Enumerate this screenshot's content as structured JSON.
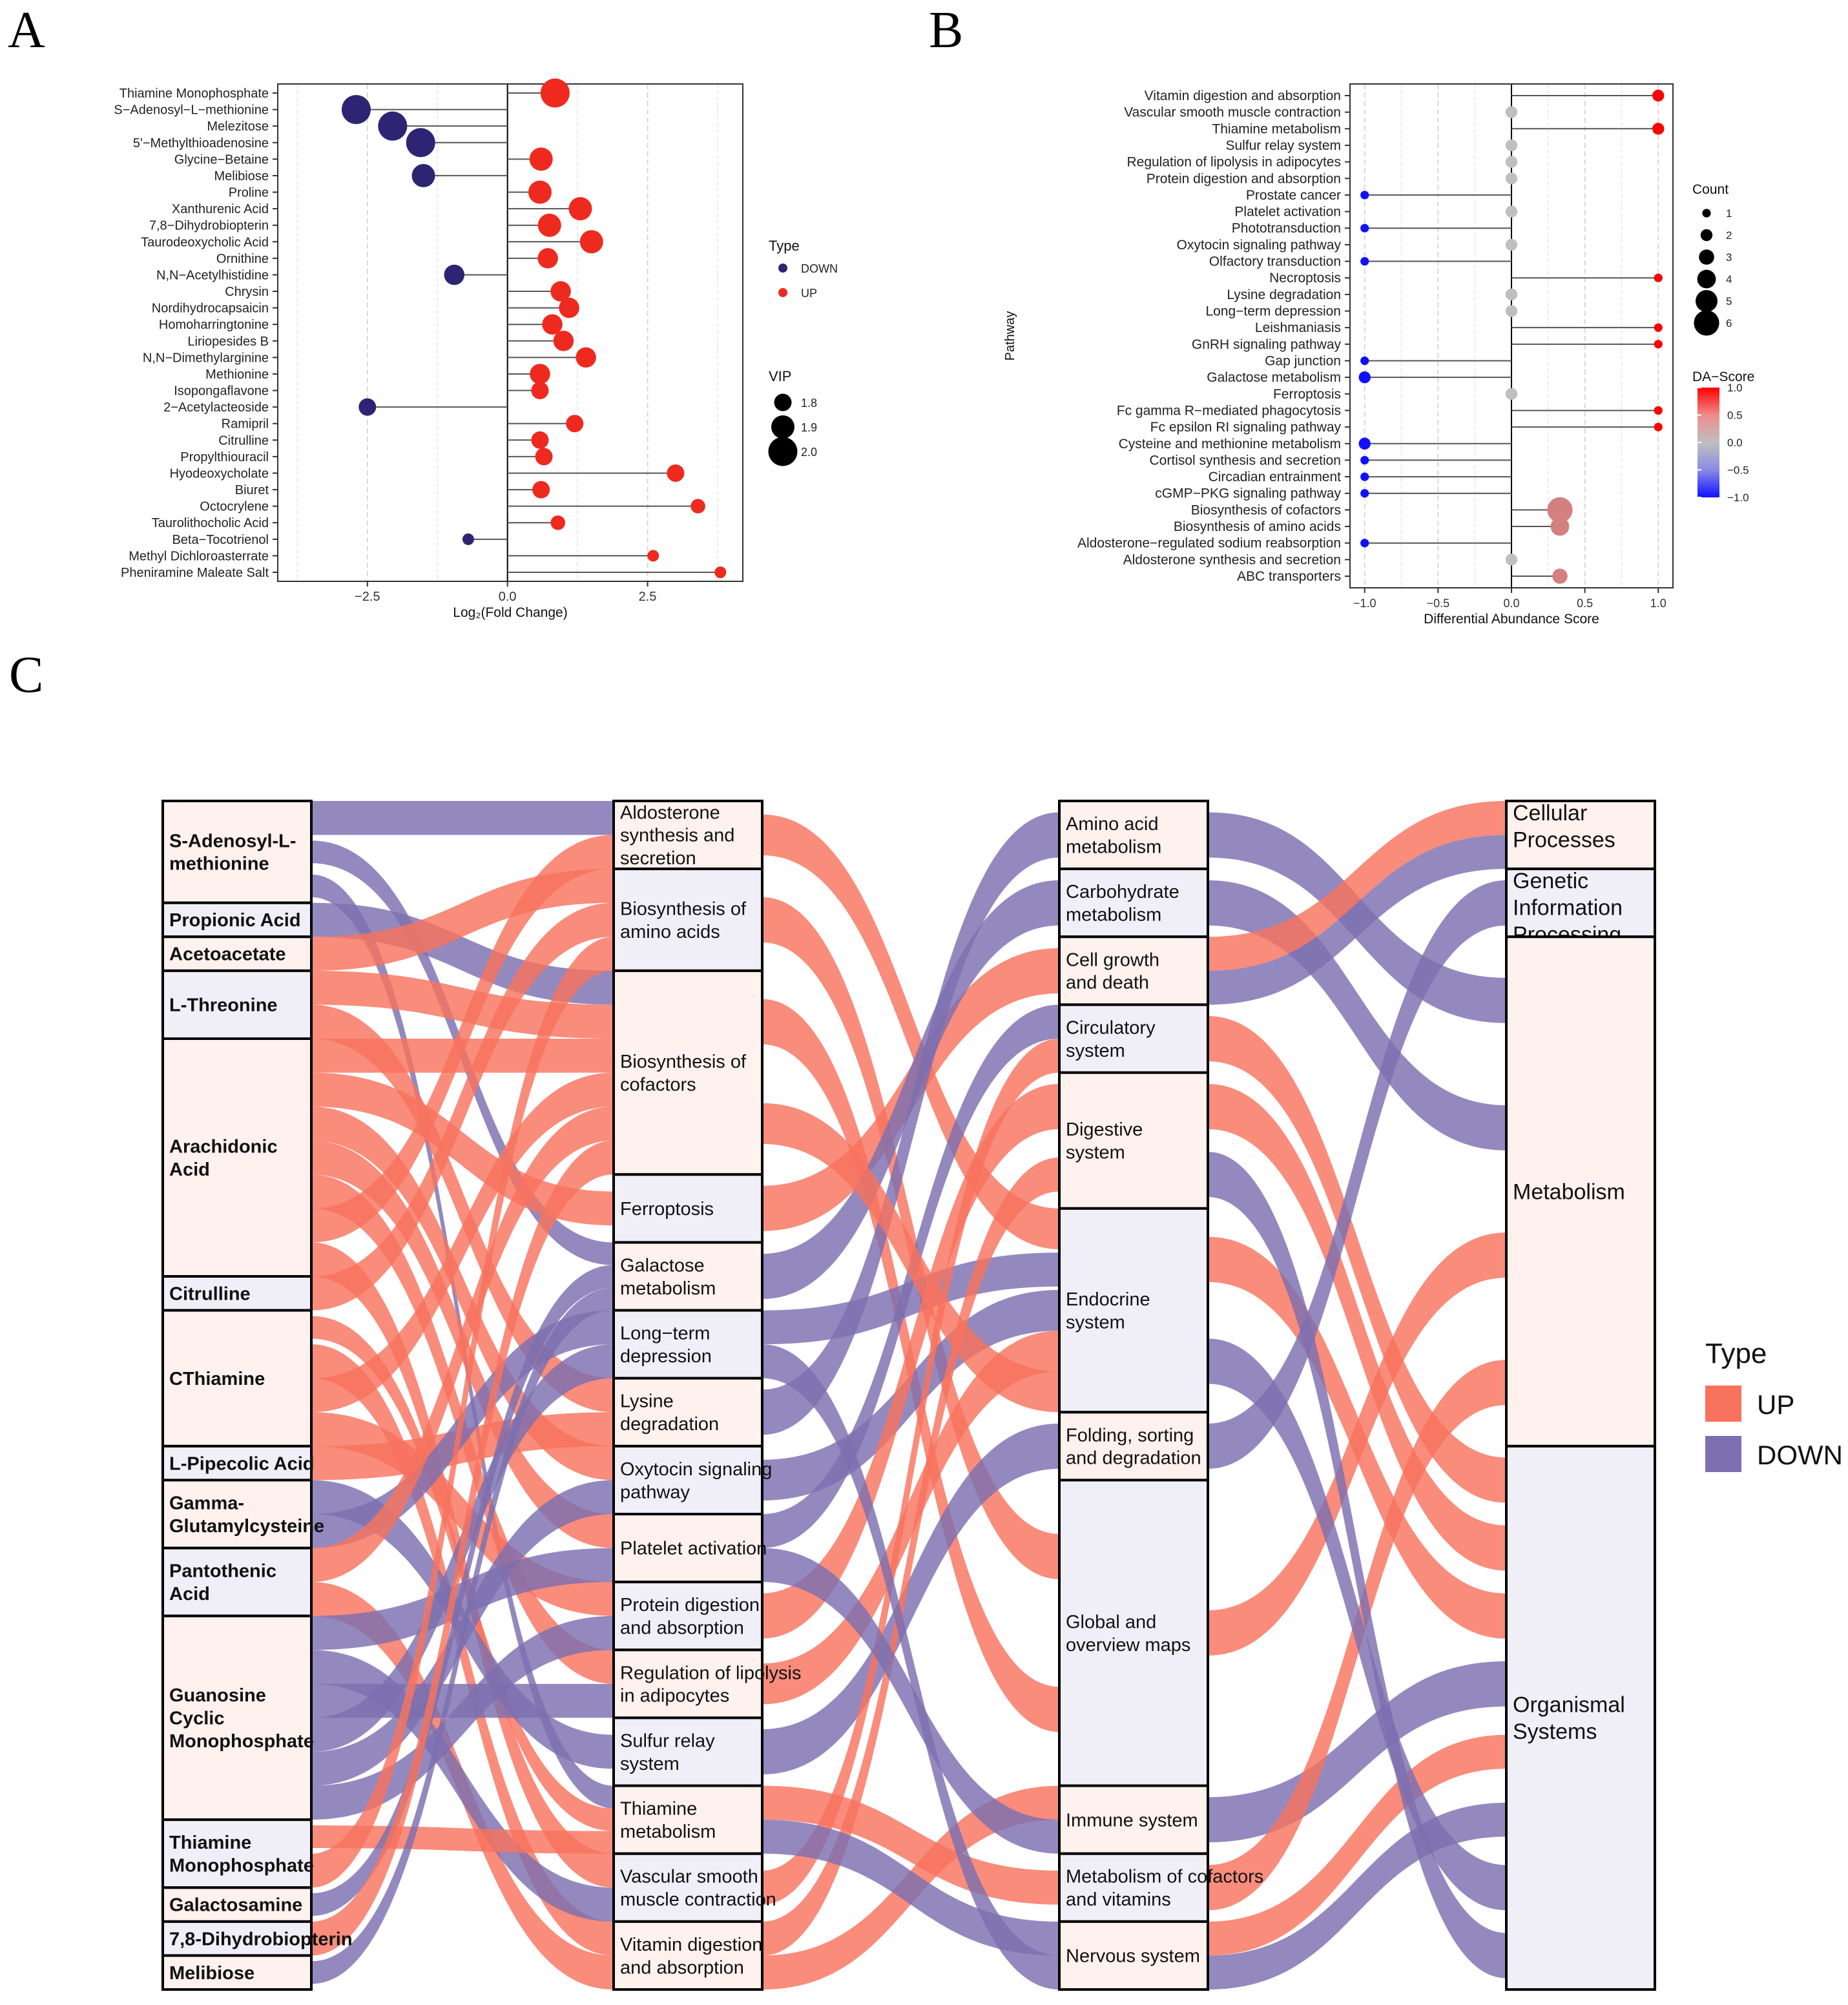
{
  "panels": {
    "a": "A",
    "b": "B",
    "c": "C"
  },
  "colors": {
    "up": "#ee2a1f",
    "down": "#2d2573",
    "da_pos": "#ff0000",
    "da_zero": "#bfbfbf",
    "da_neg": "#1010ff",
    "flow_up": "#f8735e",
    "flow_down": "#7d6fb0",
    "node_up": "#fff1ed",
    "node_down": "#f0eff8"
  },
  "chart_data": [
    {
      "id": "A",
      "type": "scatter",
      "subtype": "lollipop",
      "xlabel": "Log₂(Fold Change)",
      "ylabel": "",
      "xlim": [
        -4.1,
        4.2
      ],
      "xticks": [
        -2.5,
        0.0,
        2.5
      ],
      "xtick_labels": [
        "−2.5",
        "0.0",
        "2.5"
      ],
      "categories": [
        "Thiamine Monophosphate",
        "S−Adenosyl−L−methionine",
        "Melezitose",
        "5'−Methylthioadenosine",
        "Glycine−Betaine",
        "Melibiose",
        "Proline",
        "Xanthurenic Acid",
        "7,8−Dihydrobiopterin",
        "Taurodeoxycholic Acid",
        "Ornithine",
        "N,N−Acetylhistidine",
        "Chrysin",
        "Nordihydrocapsaicin",
        "Homoharringtonine",
        "Liriopesides B",
        "N,N−Dimethylarginine",
        "Methionine",
        "Isopongaflavone",
        "2−Acetylacteoside",
        "Ramipril",
        "Citrulline",
        "Propylthiouracil",
        "Hyodeoxycholate",
        "Biuret",
        "Octocrylene",
        "Taurolithocholic Acid",
        "Beta−Tocotrienol",
        "Methyl Dichloroasterrate",
        "Pheniramine Maleate Salt"
      ],
      "values": [
        0.85,
        -2.7,
        -2.05,
        -1.55,
        0.6,
        -1.5,
        0.58,
        1.3,
        0.75,
        1.5,
        0.72,
        -0.95,
        0.95,
        1.1,
        0.8,
        1.0,
        1.4,
        0.58,
        0.58,
        -2.5,
        1.2,
        0.58,
        0.65,
        3.0,
        0.6,
        3.4,
        0.9,
        -0.7,
        2.6,
        3.8
      ],
      "vip": [
        2.0,
        2.0,
        2.0,
        2.0,
        1.9,
        1.9,
        1.9,
        1.9,
        1.9,
        1.9,
        1.85,
        1.85,
        1.85,
        1.85,
        1.85,
        1.85,
        1.85,
        1.85,
        1.8,
        1.8,
        1.8,
        1.8,
        1.8,
        1.8,
        1.8,
        1.75,
        1.75,
        1.7,
        1.7,
        1.7
      ],
      "type_field": [
        "UP",
        "DOWN",
        "DOWN",
        "DOWN",
        "UP",
        "DOWN",
        "UP",
        "UP",
        "UP",
        "UP",
        "UP",
        "DOWN",
        "UP",
        "UP",
        "UP",
        "UP",
        "UP",
        "UP",
        "UP",
        "DOWN",
        "UP",
        "UP",
        "UP",
        "UP",
        "UP",
        "UP",
        "UP",
        "DOWN",
        "UP",
        "UP"
      ],
      "legend": {
        "type_title": "Type",
        "type_entries": [
          "DOWN",
          "UP"
        ],
        "vip_title": "VIP",
        "vip_entries": [
          "1.8",
          "1.9",
          "2.0"
        ],
        "vip_values": [
          1.8,
          1.9,
          2.0
        ]
      }
    },
    {
      "id": "B",
      "type": "scatter",
      "subtype": "lollipop",
      "xlabel": "Differential Abundance Score",
      "ylabel": "Pathway",
      "xlim": [
        -1.1,
        1.1
      ],
      "xticks": [
        -1.0,
        -0.5,
        0.0,
        0.5,
        1.0
      ],
      "xtick_labels": [
        "−1.0",
        "−0.5",
        "0.0",
        "0.5",
        "1.0"
      ],
      "categories": [
        "Vitamin digestion and absorption",
        "Vascular smooth muscle contraction",
        "Thiamine metabolism",
        "Sulfur relay system",
        "Regulation of lipolysis in adipocytes",
        "Protein digestion and absorption",
        "Prostate cancer",
        "Platelet activation",
        "Phototransduction",
        "Oxytocin signaling pathway",
        "Olfactory transduction",
        "Necroptosis",
        "Lysine degradation",
        "Long−term depression",
        "Leishmaniasis",
        "GnRH signaling pathway",
        "Gap junction",
        "Galactose metabolism",
        "Ferroptosis",
        "Fc gamma R−mediated phagocytosis",
        "Fc epsilon RI signaling pathway",
        "Cysteine and methionine metabolism",
        "Cortisol synthesis and secretion",
        "Circadian entrainment",
        "cGMP−PKG signaling pathway",
        "Biosynthesis of cofactors",
        "Biosynthesis of amino acids",
        "Aldosterone−regulated sodium reabsorption",
        "Aldosterone synthesis and secretion",
        "ABC transporters"
      ],
      "values": [
        1.0,
        0.0,
        1.0,
        0.0,
        0.0,
        0.0,
        -1.0,
        0.0,
        -1.0,
        0.0,
        -1.0,
        1.0,
        0.0,
        0.0,
        1.0,
        1.0,
        -1.0,
        -1.0,
        0.0,
        1.0,
        1.0,
        -1.0,
        -1.0,
        -1.0,
        -1.0,
        0.33,
        0.33,
        -1.0,
        0.0,
        0.33
      ],
      "count": [
        2,
        2,
        2,
        2,
        2,
        2,
        1,
        2,
        1,
        2,
        1,
        1,
        2,
        2,
        1,
        1,
        1,
        2,
        2,
        1,
        1,
        2,
        1,
        1,
        1,
        6,
        4,
        1,
        2,
        3
      ],
      "legend": {
        "count_title": "Count",
        "count_entries": [
          "1",
          "2",
          "3",
          "4",
          "5",
          "6"
        ],
        "count_values": [
          1,
          2,
          3,
          4,
          5,
          6
        ],
        "da_title": "DA−Score",
        "da_ticks": [
          "1.0",
          "0.5",
          "0.0",
          "−0.5",
          "−1.0"
        ],
        "da_tick_values": [
          1.0,
          0.5,
          0.0,
          -0.5,
          -1.0
        ]
      }
    },
    {
      "id": "C",
      "type": "sankey",
      "stage1": [
        "S-Adenosyl-L-\nmethionine",
        "Propionic Acid",
        "Acetoacetate",
        "L-Threonine",
        "Arachidonic\nAcid",
        "Citrulline",
        "CThiamine",
        "L-Pipecolic Acid",
        "Gamma-\nGlutamylcysteine",
        "Pantothenic\nAcid",
        "Guanosine\nCyclic\nMonophosphate",
        "Thiamine\nMonophosphate",
        "Galactosamine",
        "7,8-Dihydrobiopterin",
        "Melibiose"
      ],
      "stage1_weight": [
        3,
        1,
        1,
        2,
        7,
        1,
        4,
        1,
        2,
        2,
        6,
        2,
        1,
        1,
        1
      ],
      "stage2": [
        "Aldosterone\nsynthesis and\nsecretion",
        "Biosynthesis of\namino acids",
        "Biosynthesis of\ncofactors",
        "Ferroptosis",
        "Galactose\nmetabolism",
        "Long−term\ndepression",
        "Lysine\ndegradation",
        "Oxytocin signaling\npathway",
        "Platelet activation",
        "Protein digestion\nand absorption",
        "Regulation of lipolysis\nin adipocytes",
        "Sulfur relay\nsystem",
        "Thiamine\nmetabolism",
        "Vascular smooth\nmuscle contraction",
        "Vitamin digestion\nand absorption"
      ],
      "stage2_weight": [
        2,
        3,
        6,
        2,
        2,
        2,
        2,
        2,
        2,
        2,
        2,
        2,
        2,
        2,
        2
      ],
      "stage3": [
        "Amino acid\nmetabolism",
        "Carbohydrate\nmetabolism",
        "Cell growth\nand death",
        "Circulatory\nsystem",
        "Digestive\nsystem",
        "Endocrine\nsystem",
        "Folding, sorting\nand degradation",
        "Global and\noverview maps",
        "Immune system",
        "Metabolism of cofactors\nand vitamins",
        "Nervous system"
      ],
      "stage3_weight": [
        2,
        2,
        2,
        2,
        4,
        6,
        2,
        9,
        2,
        2,
        2
      ],
      "stage4": [
        "Cellular\nProcesses",
        "Genetic\nInformation\nProcessing",
        "Metabolism",
        "Organismal\nSystems"
      ],
      "stage4_weight": [
        2,
        2,
        15,
        16
      ],
      "links12": [
        [
          0,
          0,
          "DOWN"
        ],
        [
          0,
          4,
          "DOWN"
        ],
        [
          0,
          12,
          "DOWN"
        ],
        [
          1,
          2,
          "DOWN"
        ],
        [
          2,
          1,
          "UP"
        ],
        [
          3,
          2,
          "UP"
        ],
        [
          3,
          6,
          "UP"
        ],
        [
          4,
          2,
          "UP"
        ],
        [
          4,
          3,
          "UP"
        ],
        [
          4,
          7,
          "UP"
        ],
        [
          4,
          8,
          "UP"
        ],
        [
          4,
          10,
          "UP"
        ],
        [
          4,
          0,
          "UP"
        ],
        [
          4,
          13,
          "UP"
        ],
        [
          5,
          1,
          "UP"
        ],
        [
          6,
          12,
          "UP"
        ],
        [
          6,
          14,
          "UP"
        ],
        [
          6,
          2,
          "UP"
        ],
        [
          6,
          9,
          "UP"
        ],
        [
          7,
          6,
          "UP"
        ],
        [
          8,
          11,
          "DOWN"
        ],
        [
          8,
          5,
          "DOWN"
        ],
        [
          9,
          2,
          "UP"
        ],
        [
          9,
          14,
          "UP"
        ],
        [
          10,
          8,
          "DOWN"
        ],
        [
          10,
          13,
          "DOWN"
        ],
        [
          10,
          10,
          "DOWN"
        ],
        [
          10,
          5,
          "DOWN"
        ],
        [
          10,
          7,
          "DOWN"
        ],
        [
          10,
          9,
          "DOWN"
        ],
        [
          11,
          12,
          "UP"
        ],
        [
          11,
          1,
          "UP"
        ],
        [
          12,
          4,
          "DOWN"
        ],
        [
          13,
          2,
          "UP"
        ],
        [
          14,
          4,
          "DOWN"
        ]
      ],
      "links23": [
        [
          0,
          5,
          "UP"
        ],
        [
          1,
          7,
          "UP"
        ],
        [
          2,
          7,
          "UP"
        ],
        [
          3,
          2,
          "UP"
        ],
        [
          4,
          1,
          "DOWN"
        ],
        [
          5,
          5,
          "DOWN"
        ],
        [
          6,
          0,
          "DOWN"
        ],
        [
          7,
          5,
          "DOWN"
        ],
        [
          8,
          3,
          "DOWN"
        ],
        [
          9,
          4,
          "UP"
        ],
        [
          10,
          5,
          "UP"
        ],
        [
          11,
          6,
          "DOWN"
        ],
        [
          12,
          9,
          "UP"
        ],
        [
          13,
          3,
          "UP"
        ],
        [
          14,
          4,
          "UP"
        ],
        [
          14,
          8,
          "UP"
        ],
        [
          12,
          10,
          "DOWN"
        ],
        [
          5,
          10,
          "DOWN"
        ],
        [
          2,
          5,
          "UP"
        ],
        [
          8,
          8,
          "DOWN"
        ]
      ],
      "links34": [
        [
          0,
          2,
          "DOWN"
        ],
        [
          1,
          2,
          "DOWN"
        ],
        [
          2,
          0,
          "UP"
        ],
        [
          3,
          3,
          "UP"
        ],
        [
          4,
          3,
          "UP"
        ],
        [
          5,
          3,
          "UP"
        ],
        [
          6,
          1,
          "DOWN"
        ],
        [
          7,
          2,
          "UP"
        ],
        [
          8,
          3,
          "DOWN"
        ],
        [
          9,
          2,
          "UP"
        ],
        [
          10,
          3,
          "UP"
        ],
        [
          10,
          3,
          "DOWN"
        ],
        [
          2,
          0,
          "DOWN"
        ],
        [
          5,
          3,
          "DOWN"
        ],
        [
          4,
          3,
          "DOWN"
        ]
      ],
      "legend": {
        "title": "Type",
        "entries": [
          "UP",
          "DOWN"
        ]
      }
    }
  ]
}
